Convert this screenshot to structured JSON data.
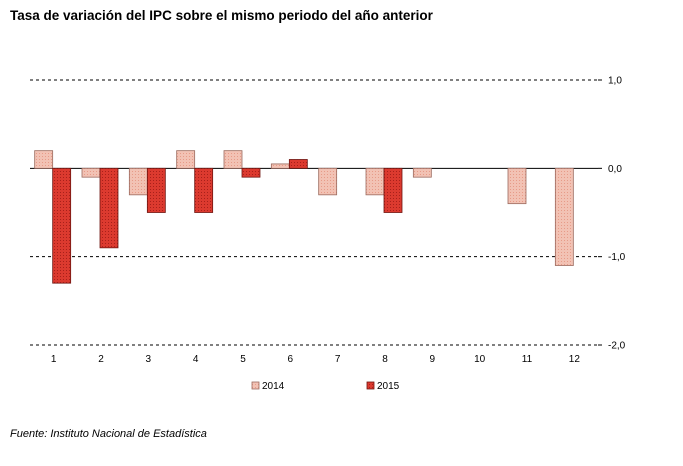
{
  "title": "Tasa de variación del IPC sobre el mismo periodo del año anterior",
  "source": "Fuente: Instituto Nacional de Estadística",
  "chart_data": {
    "type": "bar",
    "categories": [
      "1",
      "2",
      "3",
      "4",
      "5",
      "6",
      "7",
      "8",
      "9",
      "10",
      "11",
      "12"
    ],
    "series": [
      {
        "name": "2014",
        "color": "#f4c9bd",
        "values": [
          0.2,
          -0.1,
          -0.3,
          0.2,
          0.2,
          0.05,
          -0.3,
          -0.3,
          -0.1,
          null,
          -0.4,
          -1.1
        ]
      },
      {
        "name": "2015",
        "color": "#d8352c",
        "values": [
          -1.3,
          -0.9,
          -0.5,
          -0.5,
          -0.1,
          0.1,
          null,
          -0.5,
          null,
          null,
          null,
          null
        ]
      }
    ],
    "yticks": [
      "1,0",
      "0,0",
      "-1,0",
      "-2,0"
    ],
    "ytick_values": [
      1,
      0,
      -1,
      -2
    ],
    "ylim": [
      -2,
      1
    ],
    "grid": "dashed horizontal",
    "legend": "bottom"
  }
}
